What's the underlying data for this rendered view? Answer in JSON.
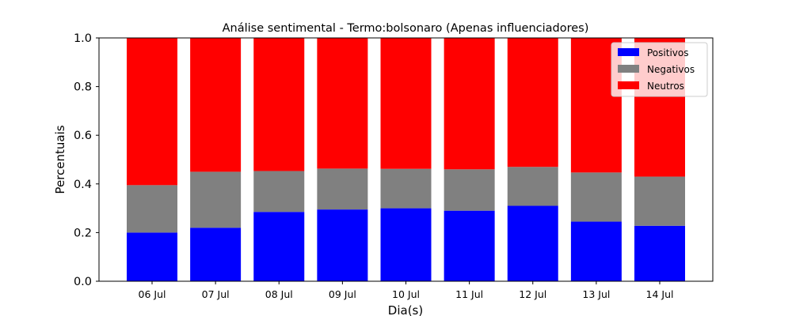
{
  "chart_data": {
    "type": "bar",
    "stacked": true,
    "title": "Análise sentimental - Termo:bolsonaro (Apenas influenciadores)",
    "xlabel": "Dia(s)",
    "ylabel": "Percentuais",
    "ylim": [
      0,
      1.0
    ],
    "yticks": [
      "0.0",
      "0.2",
      "0.4",
      "0.6",
      "0.8",
      "1.0"
    ],
    "categories": [
      "06 Jul",
      "07 Jul",
      "08 Jul",
      "09 Jul",
      "10 Jul",
      "11 Jul",
      "12 Jul",
      "13 Jul",
      "14 Jul"
    ],
    "series": [
      {
        "name": "Positivos",
        "color": "#0000ff",
        "values": [
          0.2,
          0.22,
          0.285,
          0.295,
          0.3,
          0.29,
          0.31,
          0.245,
          0.228
        ]
      },
      {
        "name": "Negativos",
        "color": "#808080",
        "values": [
          0.195,
          0.23,
          0.168,
          0.168,
          0.162,
          0.17,
          0.16,
          0.202,
          0.202
        ]
      },
      {
        "name": "Neutros",
        "color": "#ff0000",
        "values": [
          0.605,
          0.55,
          0.547,
          0.537,
          0.538,
          0.54,
          0.53,
          0.553,
          0.57
        ]
      }
    ],
    "grid": false,
    "legend_position": "top-right"
  }
}
